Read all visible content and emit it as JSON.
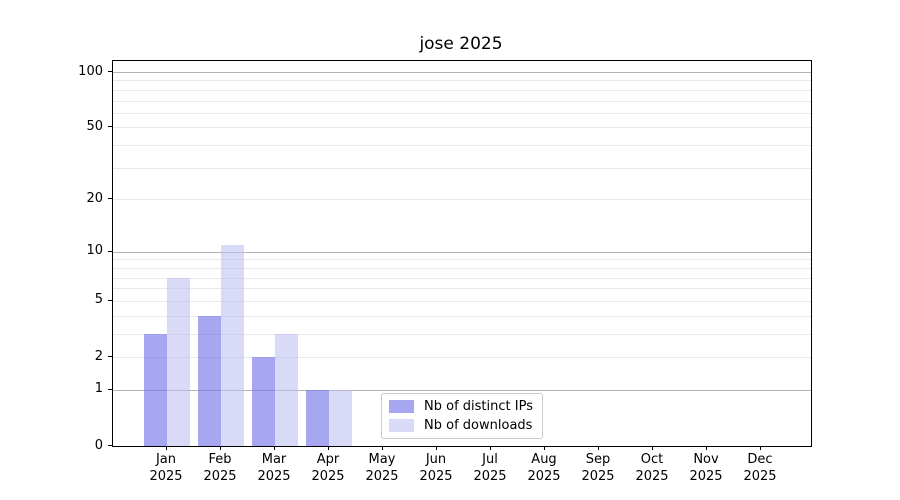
{
  "chart_data": {
    "type": "bar",
    "title": "jose 2025",
    "x": {
      "categories": [
        "Jan",
        "Feb",
        "Mar",
        "Apr",
        "May",
        "Jun",
        "Jul",
        "Aug",
        "Sep",
        "Oct",
        "Nov",
        "Dec"
      ],
      "year": "2025"
    },
    "series": [
      {
        "name": "Nb of distinct IPs",
        "values": [
          3,
          4,
          2,
          1,
          0,
          0,
          0,
          0,
          0,
          0,
          0,
          0
        ],
        "color": "#a7a7f1",
        "fill": "rgba(122,122,234,0.66)"
      },
      {
        "name": "Nb of downloads",
        "values": [
          7,
          11,
          3,
          1,
          0,
          0,
          0,
          0,
          0,
          0,
          0,
          0
        ],
        "color": "#d9d9f8",
        "fill": "rgba(186,186,243,0.55)"
      }
    ],
    "yscale": "log1p",
    "ylim": [
      0,
      115
    ],
    "y_ticks": [
      100,
      50,
      20,
      10,
      5,
      2,
      1,
      0
    ],
    "grid": {
      "major": [
        1,
        10,
        100
      ],
      "minor": [
        2,
        3,
        4,
        5,
        6,
        7,
        8,
        9,
        20,
        30,
        40,
        50,
        60,
        70,
        80,
        90
      ]
    },
    "legend": {
      "position": "lower center"
    }
  }
}
